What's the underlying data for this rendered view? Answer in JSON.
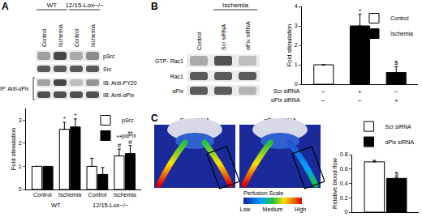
{
  "chart_data": [
    {
      "type": "bar",
      "categories": [
        "Control",
        "Ischemia",
        "Control",
        "Ischemia"
      ],
      "groups": [
        "WT",
        "WT",
        "12/15-Lox−/−",
        "12/15-Lox−/−"
      ],
      "y_label": "Fold stimulation",
      "ylim": [
        0,
        3.5
      ],
      "yticks": [
        0,
        1,
        2,
        3
      ],
      "grid": false,
      "legend": "top right",
      "series": [
        {
          "name": "pSrc",
          "color": "#ffffff",
          "values": [
            1,
            2.6,
            1.0,
            1.45
          ],
          "errors": [
            0,
            0.3,
            0.35,
            0.3
          ],
          "marks": [
            null,
            "*",
            null,
            "**\n#"
          ]
        },
        {
          "name": "pαPix",
          "color": "#000000",
          "values": [
            1,
            2.7,
            0.65,
            1.55
          ],
          "errors": [
            0,
            0.35,
            0.3,
            0.35
          ],
          "marks": [
            null,
            "*",
            null,
            "**\n#"
          ]
        }
      ]
    },
    {
      "type": "bar",
      "categories": [
        null,
        null,
        null
      ],
      "y_label": "Fold stimulation",
      "ylim": [
        0,
        4
      ],
      "yticks": [
        0,
        1,
        2,
        3,
        4
      ],
      "grid": false,
      "legend": "top right",
      "tick_labels": "y",
      "rows": [
        {
          "label": "Scr siRNA",
          "values": [
            "−",
            "+",
            "−"
          ]
        },
        {
          "label": "αPix siRNA",
          "values": [
            "−",
            "−",
            "+"
          ]
        }
      ],
      "series": [
        {
          "name": "Control",
          "color": "#ffffff",
          "values": [
            1,
            null,
            null
          ],
          "errors": [
            0,
            null,
            null
          ],
          "marks": [
            null,
            null,
            null
          ]
        },
        {
          "name": "Ischemia",
          "color": "#000000",
          "values": [
            null,
            3.0,
            0.6
          ],
          "errors": [
            null,
            0.6,
            0.3
          ],
          "marks": [
            null,
            "*",
            "$"
          ]
        }
      ]
    },
    {
      "type": "bar",
      "categories": [
        null
      ],
      "y_label": "Relative blood flow",
      "ylim": [
        0,
        0.8
      ],
      "yticks": [
        0,
        0.2,
        0.4,
        0.6,
        0.8
      ],
      "grid": false,
      "legend": "top",
      "tick_labels": "y",
      "series": [
        {
          "name": "Scr siRNA",
          "color": "#ffffff",
          "values": [
            0.7
          ],
          "errors": [
            0.02
          ],
          "marks": [
            null
          ]
        },
        {
          "name": "αPix siRNA",
          "color": "#000000",
          "values": [
            0.47
          ],
          "errors": [
            0.02
          ],
          "marks": [
            "$"
          ]
        }
      ]
    }
  ],
  "figure": {
    "A": {
      "letter": "A",
      "headers": [
        "WT",
        "12/15-Lox−/−"
      ],
      "lanes": [
        "Control",
        "Ischemia",
        "Control",
        "Ischemia"
      ],
      "rows": [
        "pSrc",
        "Src",
        "IB: Anti-PY20",
        "IB: Anti-αPix"
      ],
      "ip_label": "IP: Anti-αPix"
    },
    "B": {
      "letter": "B",
      "header": "Ischemia",
      "lanes": [
        "Control",
        "Scr siRNA",
        "αPix siRNA"
      ],
      "rows": [
        "GTP- Rac1",
        "Rac1",
        "αPix"
      ]
    },
    "C": {
      "letter": "C",
      "images": [
        "Scr siRNA",
        "αPix siRNA"
      ],
      "scale_title": "Perfusion Scale",
      "scale_labels": [
        "Low",
        "Medium",
        "High"
      ]
    }
  }
}
